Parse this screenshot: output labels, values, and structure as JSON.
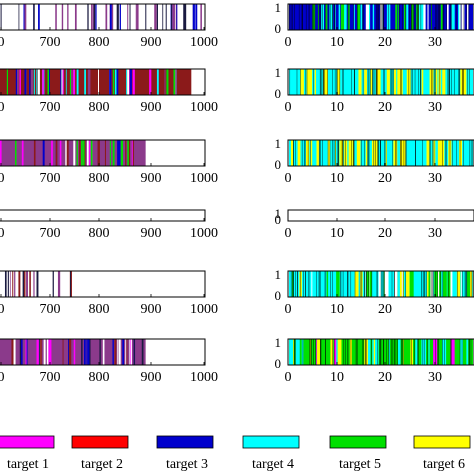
{
  "colors": {
    "target_1": "#ff00ff",
    "target_2": "#ff0000",
    "target_3": "#0000cc",
    "target_4": "#00ffff",
    "target_5": "#00e000",
    "target_6": "#ffff00",
    "accent_brown": "#8b1a1a",
    "accent_purple": "#8b3a8b",
    "accent_dark": "#1a1a40"
  },
  "legend": {
    "entries": [
      "target 1",
      "target 2",
      "target 3",
      "target 4",
      "target 5",
      "target 6"
    ]
  },
  "chart_data": [
    {
      "type": "bar",
      "panel": "left-1",
      "xlim": [
        600,
        1000
      ],
      "x_ticks": [
        "0",
        "700",
        "800",
        "900",
        "1000"
      ],
      "fill_end": 1000,
      "base_color": "white",
      "stripe_colors": [
        "#0000cc",
        "#1a1a40",
        "#8b3a8b"
      ]
    },
    {
      "type": "bar",
      "panel": "left-2",
      "xlim": [
        600,
        1000
      ],
      "x_ticks": [
        "0",
        "700",
        "800",
        "900",
        "1000"
      ],
      "fill_end": 975,
      "base_color": "#8b1a1a",
      "stripe_colors": [
        "#00e000",
        "#ff00ff",
        "#0000cc",
        "#8b3a8b",
        "#ffffff",
        "#00ffff"
      ]
    },
    {
      "type": "bar",
      "panel": "left-3",
      "xlim": [
        600,
        1000
      ],
      "x_ticks": [
        "0",
        "700",
        "800",
        "900",
        "1000"
      ],
      "fill_end": 885,
      "base_color": "#8b3a8b",
      "stripe_colors": [
        "#ff00ff",
        "#ffffff",
        "#8b1a1a",
        "#0000cc",
        "#00e000"
      ]
    },
    {
      "type": "bar",
      "panel": "left-4",
      "xlim": [
        600,
        1000
      ],
      "x_ticks": [
        "0",
        "700",
        "800",
        "900",
        "1000"
      ],
      "fill_end": 600,
      "base_color": "white",
      "stripe_colors": []
    },
    {
      "type": "bar",
      "panel": "left-5",
      "xlim": [
        600,
        1000
      ],
      "x_ticks": [
        "0",
        "700",
        "800",
        "900",
        "1000"
      ],
      "fill_end": 745,
      "base_color": "#ffffff",
      "stripe_colors": [
        "#8b1a1a",
        "#8b3a8b",
        "#1a1a40"
      ]
    },
    {
      "type": "bar",
      "panel": "left-6",
      "xlim": [
        600,
        1000
      ],
      "x_ticks": [
        "0",
        "700",
        "800",
        "900",
        "1000"
      ],
      "fill_end": 885,
      "base_color": "#8b3a8b",
      "stripe_colors": [
        "#ff00ff",
        "#0000cc",
        "#ffffff",
        "#1a1a40",
        "#8b1a1a"
      ]
    },
    {
      "type": "bar",
      "panel": "right-1",
      "xlim": [
        0,
        40
      ],
      "x_ticks": [
        "0",
        "10",
        "20",
        "30"
      ],
      "y_ticks": [
        "1",
        "0"
      ],
      "fill_end": 40,
      "base_color": "#0000cc",
      "stripe_colors": [
        "#00e000",
        "#ffffff",
        "#00ffff"
      ]
    },
    {
      "type": "bar",
      "panel": "right-2",
      "xlim": [
        0,
        40
      ],
      "x_ticks": [
        "0",
        "10",
        "20",
        "30"
      ],
      "y_ticks": [
        "1",
        "0"
      ],
      "fill_end": 40,
      "base_color": "#00ffff",
      "stripe_colors": [
        "#ffff00"
      ]
    },
    {
      "type": "bar",
      "panel": "right-3",
      "xlim": [
        0,
        40
      ],
      "x_ticks": [
        "0",
        "10",
        "20",
        "30"
      ],
      "y_ticks": [
        "1",
        "0"
      ],
      "fill_end": 40,
      "base_color": "#00ffff",
      "stripe_colors": [
        "#ffff00"
      ]
    },
    {
      "type": "bar",
      "panel": "right-4",
      "xlim": [
        0,
        40
      ],
      "x_ticks": [
        "0",
        "10",
        "20",
        "30"
      ],
      "y_ticks": [
        "1",
        "0"
      ],
      "fill_end": 0,
      "base_color": "white",
      "stripe_colors": []
    },
    {
      "type": "bar",
      "panel": "right-5",
      "xlim": [
        0,
        40
      ],
      "x_ticks": [
        "0",
        "10",
        "20",
        "30"
      ],
      "y_ticks": [
        "1",
        "0"
      ],
      "fill_end": 40,
      "base_color": "#00ffff",
      "stripe_colors": [
        "#ffff00",
        "#00e000",
        "#ffffff"
      ]
    },
    {
      "type": "bar",
      "panel": "right-6",
      "xlim": [
        0,
        40
      ],
      "x_ticks": [
        "0",
        "10",
        "20",
        "30"
      ],
      "y_ticks": [
        "1",
        "0"
      ],
      "fill_end": 40,
      "base_color": "#00e000",
      "stripe_colors": [
        "#ff00ff",
        "#00ffff",
        "#ffff00"
      ]
    }
  ]
}
